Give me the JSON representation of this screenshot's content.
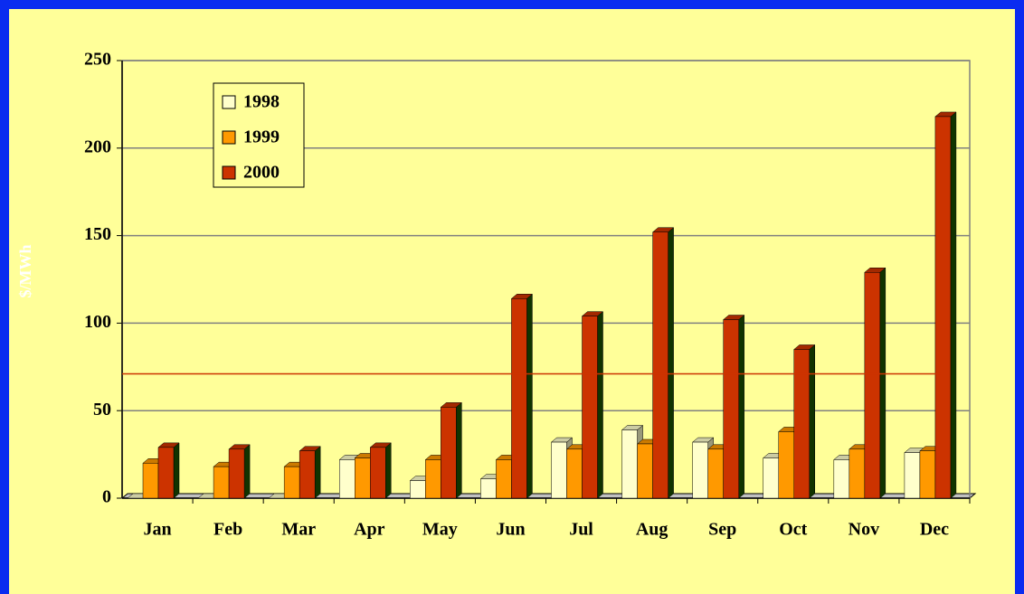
{
  "chart_data": {
    "type": "bar",
    "ylabel": "$/MWh",
    "categories": [
      "Jan",
      "Feb",
      "Mar",
      "Apr",
      "May",
      "Jun",
      "Jul",
      "Aug",
      "Sep",
      "Oct",
      "Nov",
      "Dec"
    ],
    "series": [
      {
        "name": "1998",
        "color": "#ffffcc",
        "values": [
          0,
          0,
          0,
          22,
          10,
          11,
          32,
          39,
          32,
          23,
          22,
          26
        ]
      },
      {
        "name": "1999",
        "color": "#ff9900",
        "values": [
          20,
          18,
          18,
          23,
          22,
          22,
          28,
          31,
          28,
          38,
          28,
          27
        ]
      },
      {
        "name": "2000",
        "color": "#cc3300",
        "values": [
          29,
          28,
          27,
          29,
          52,
          114,
          104,
          152,
          102,
          85,
          129,
          218
        ]
      }
    ],
    "ylim": [
      0,
      250
    ],
    "yticks": [
      0,
      50,
      100,
      150,
      200,
      250
    ],
    "grid": true,
    "reference_line": {
      "value": 71,
      "color": "#cc3300"
    },
    "legend": "upper left"
  }
}
